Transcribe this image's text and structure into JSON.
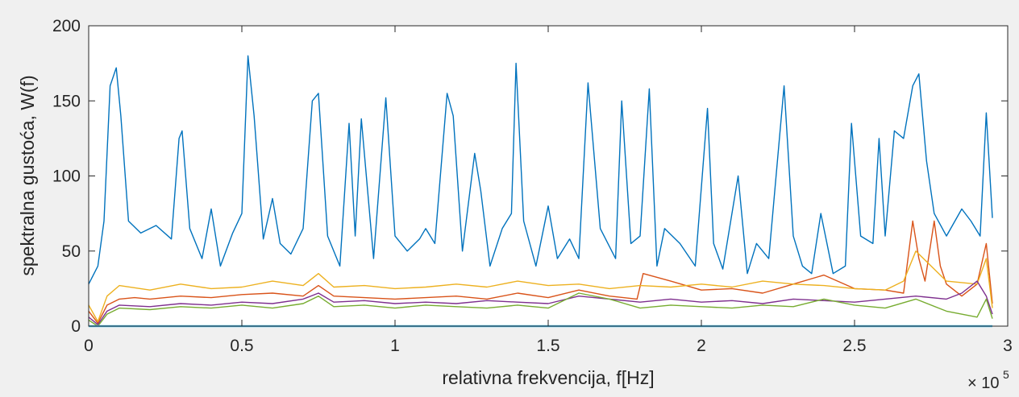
{
  "chart_data": {
    "type": "line",
    "title": "",
    "xlabel": "relativna frekvencija, f[Hz]",
    "ylabel": "spektralna gustoća, W(f)",
    "x_exponent": {
      "base": "× 10",
      "power": "5"
    },
    "xlim": [
      0,
      3
    ],
    "ylim": [
      0,
      200
    ],
    "x_ticks": [
      "0",
      "0.5",
      "1",
      "1.5",
      "2",
      "2.5",
      "3"
    ],
    "y_ticks": [
      "0",
      "50",
      "100",
      "150",
      "200"
    ],
    "x_units": "×10^5 Hz",
    "grid": false,
    "legend": "none",
    "series": [
      {
        "color": "#0072BD",
        "x": [
          0,
          0.03,
          0.05,
          0.07,
          0.09,
          0.105,
          0.13,
          0.17,
          0.22,
          0.27,
          0.295,
          0.305,
          0.33,
          0.37,
          0.4,
          0.43,
          0.47,
          0.5,
          0.52,
          0.54,
          0.57,
          0.6,
          0.625,
          0.66,
          0.7,
          0.73,
          0.75,
          0.78,
          0.82,
          0.85,
          0.87,
          0.89,
          0.93,
          0.97,
          1.0,
          1.04,
          1.08,
          1.1,
          1.13,
          1.17,
          1.19,
          1.22,
          1.26,
          1.28,
          1.31,
          1.35,
          1.38,
          1.395,
          1.42,
          1.46,
          1.5,
          1.53,
          1.57,
          1.6,
          1.63,
          1.67,
          1.72,
          1.74,
          1.77,
          1.8,
          1.83,
          1.855,
          1.88,
          1.93,
          1.98,
          2.02,
          2.04,
          2.07,
          2.12,
          2.15,
          2.18,
          2.22,
          2.27,
          2.3,
          2.33,
          2.36,
          2.39,
          2.43,
          2.47,
          2.49,
          2.52,
          2.56,
          2.58,
          2.6,
          2.63,
          2.66,
          2.69,
          2.71,
          2.735,
          2.76,
          2.8,
          2.85,
          2.88,
          2.91,
          2.93,
          2.95
        ],
        "y": [
          28,
          40,
          70,
          160,
          172,
          140,
          70,
          62,
          67,
          58,
          125,
          130,
          65,
          45,
          78,
          40,
          62,
          75,
          180,
          140,
          58,
          85,
          55,
          48,
          65,
          150,
          155,
          60,
          40,
          135,
          60,
          138,
          45,
          152,
          60,
          50,
          58,
          65,
          55,
          155,
          140,
          50,
          115,
          90,
          40,
          65,
          75,
          175,
          70,
          40,
          80,
          45,
          58,
          45,
          162,
          65,
          45,
          150,
          55,
          60,
          158,
          40,
          65,
          55,
          40,
          145,
          55,
          38,
          100,
          35,
          55,
          45,
          160,
          60,
          40,
          35,
          75,
          35,
          40,
          135,
          60,
          55,
          125,
          60,
          130,
          125,
          160,
          168,
          110,
          75,
          60,
          78,
          70,
          60,
          142,
          72
        ]
      },
      {
        "color": "#D95319",
        "x": [
          0,
          0.03,
          0.06,
          0.1,
          0.15,
          0.2,
          0.3,
          0.4,
          0.5,
          0.6,
          0.7,
          0.75,
          0.8,
          0.9,
          1.0,
          1.1,
          1.2,
          1.3,
          1.4,
          1.5,
          1.6,
          1.7,
          1.79,
          1.81,
          1.9,
          2.0,
          2.1,
          2.2,
          2.3,
          2.4,
          2.5,
          2.6,
          2.66,
          2.69,
          2.71,
          2.73,
          2.76,
          2.78,
          2.8,
          2.85,
          2.9,
          2.93,
          2.95
        ],
        "y": [
          10,
          2,
          14,
          18,
          19,
          18,
          20,
          19,
          21,
          22,
          20,
          27,
          20,
          19,
          18,
          19,
          20,
          18,
          22,
          19,
          24,
          20,
          18,
          35,
          30,
          24,
          25,
          22,
          28,
          34,
          25,
          24,
          22,
          70,
          45,
          30,
          70,
          40,
          28,
          20,
          28,
          55,
          15
        ]
      },
      {
        "color": "#EDB120",
        "x": [
          0,
          0.03,
          0.06,
          0.1,
          0.2,
          0.3,
          0.4,
          0.5,
          0.6,
          0.7,
          0.75,
          0.8,
          0.9,
          1.0,
          1.1,
          1.2,
          1.3,
          1.4,
          1.5,
          1.6,
          1.7,
          1.8,
          1.9,
          2.0,
          2.1,
          2.2,
          2.3,
          2.4,
          2.5,
          2.6,
          2.66,
          2.7,
          2.75,
          2.8,
          2.9,
          2.93,
          2.95
        ],
        "y": [
          14,
          3,
          20,
          27,
          24,
          28,
          25,
          26,
          30,
          27,
          35,
          26,
          27,
          25,
          26,
          28,
          26,
          30,
          27,
          28,
          25,
          27,
          26,
          28,
          26,
          30,
          28,
          27,
          25,
          24,
          30,
          50,
          40,
          30,
          28,
          45,
          12
        ]
      },
      {
        "color": "#7E2F8E",
        "x": [
          0,
          0.03,
          0.06,
          0.1,
          0.2,
          0.3,
          0.4,
          0.5,
          0.6,
          0.7,
          0.75,
          0.8,
          0.9,
          1.0,
          1.1,
          1.2,
          1.3,
          1.4,
          1.5,
          1.6,
          1.7,
          1.8,
          1.9,
          2.0,
          2.1,
          2.2,
          2.3,
          2.4,
          2.5,
          2.6,
          2.7,
          2.8,
          2.85,
          2.9,
          2.93,
          2.95
        ],
        "y": [
          6,
          1,
          10,
          14,
          13,
          15,
          14,
          16,
          15,
          18,
          22,
          16,
          17,
          15,
          16,
          15,
          17,
          16,
          15,
          20,
          18,
          16,
          18,
          16,
          17,
          15,
          18,
          17,
          16,
          18,
          20,
          18,
          22,
          30,
          20,
          8
        ]
      },
      {
        "color": "#77AC30",
        "x": [
          0,
          0.03,
          0.06,
          0.1,
          0.2,
          0.3,
          0.4,
          0.5,
          0.6,
          0.7,
          0.75,
          0.8,
          0.9,
          1.0,
          1.1,
          1.2,
          1.3,
          1.4,
          1.5,
          1.6,
          1.7,
          1.8,
          1.9,
          2.0,
          2.1,
          2.2,
          2.3,
          2.4,
          2.5,
          2.6,
          2.7,
          2.8,
          2.9,
          2.93,
          2.95
        ],
        "y": [
          4,
          0,
          8,
          12,
          11,
          13,
          12,
          14,
          12,
          15,
          20,
          13,
          14,
          12,
          14,
          13,
          12,
          14,
          12,
          22,
          18,
          12,
          14,
          13,
          12,
          14,
          13,
          18,
          14,
          12,
          18,
          10,
          6,
          18,
          5
        ]
      },
      {
        "color": "#4DBEEE",
        "x": [
          0,
          2.95
        ],
        "y": [
          0,
          0
        ]
      }
    ]
  }
}
